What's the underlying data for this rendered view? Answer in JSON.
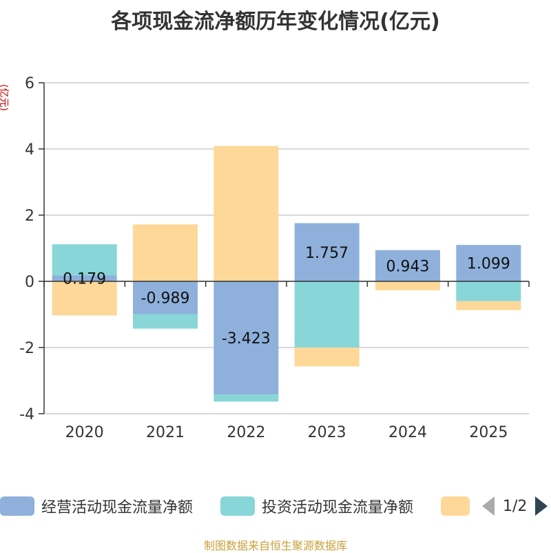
{
  "title": "各项现金流净额历年变化情况(亿元)",
  "unit_label": "(亿元)",
  "source": "制图数据来自恒生聚源数据库",
  "pager": {
    "text": "1/2"
  },
  "chart_data": {
    "type": "bar",
    "stacked": true,
    "title": "各项现金流净额历年变化情况(亿元)",
    "ylabel": "(亿元)",
    "ylim": [
      -4,
      6
    ],
    "yticks": [
      -4,
      -2,
      0,
      2,
      4,
      6
    ],
    "categories": [
      "2020",
      "2021",
      "2022",
      "2023",
      "2024",
      "2025"
    ],
    "series": [
      {
        "name": "经营活动现金流量净额",
        "color": "#8eb0db",
        "values": [
          0.179,
          -0.989,
          -3.423,
          1.757,
          0.943,
          1.099
        ],
        "show_labels": true
      },
      {
        "name": "投资活动现金流量净额",
        "color": "#88d6d8",
        "values": [
          0.94,
          -0.44,
          -0.21,
          -2.0,
          0.0,
          -0.6
        ],
        "show_labels": false
      },
      {
        "name": "",
        "color": "#fdd898",
        "values": [
          -1.03,
          1.72,
          4.09,
          -0.57,
          -0.27,
          -0.27
        ],
        "show_labels": false
      }
    ],
    "grid": true,
    "legend_position": "bottom"
  }
}
